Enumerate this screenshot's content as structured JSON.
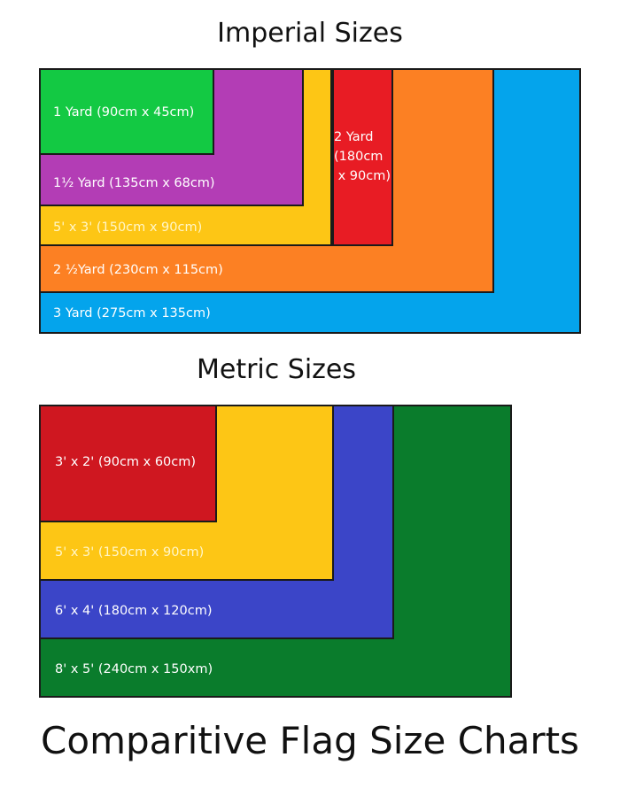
{
  "imperial": {
    "title": "Imperial Sizes",
    "sizes": [
      {
        "label": "3 Yard (275cm x 135cm)",
        "color": "#04a4ec"
      },
      {
        "label": "2 ½Yard (230cm x 115cm)",
        "color": "#fc8023"
      },
      {
        "label": "2 Yard (180cm x 90cm)",
        "lines": [
          "2 Yard",
          "(180cm",
          " x 90cm)"
        ],
        "color": "#e81c24"
      },
      {
        "label": "5' x 3' (150cm x 90cm)",
        "color": "#fdc615"
      },
      {
        "label": "1½ Yard (135cm x 68cm)",
        "color": "#b33db5"
      },
      {
        "label": "1 Yard (90cm x 45cm)",
        "color": "#13c943"
      }
    ]
  },
  "metric": {
    "title": "Metric Sizes",
    "sizes": [
      {
        "label": "8' x 5' (240cm x 150xm)",
        "color": "#0a7c2c"
      },
      {
        "label": "6' x 4' (180cm x 120cm)",
        "color": "#3b45c8"
      },
      {
        "label": "5' x 3' (150cm x 90cm)",
        "color": "#fdc615"
      },
      {
        "label": "3' x 2' (90cm x 60cm)",
        "color": "#cf1720"
      }
    ]
  },
  "footer_title": "Comparitive Flag Size Charts"
}
